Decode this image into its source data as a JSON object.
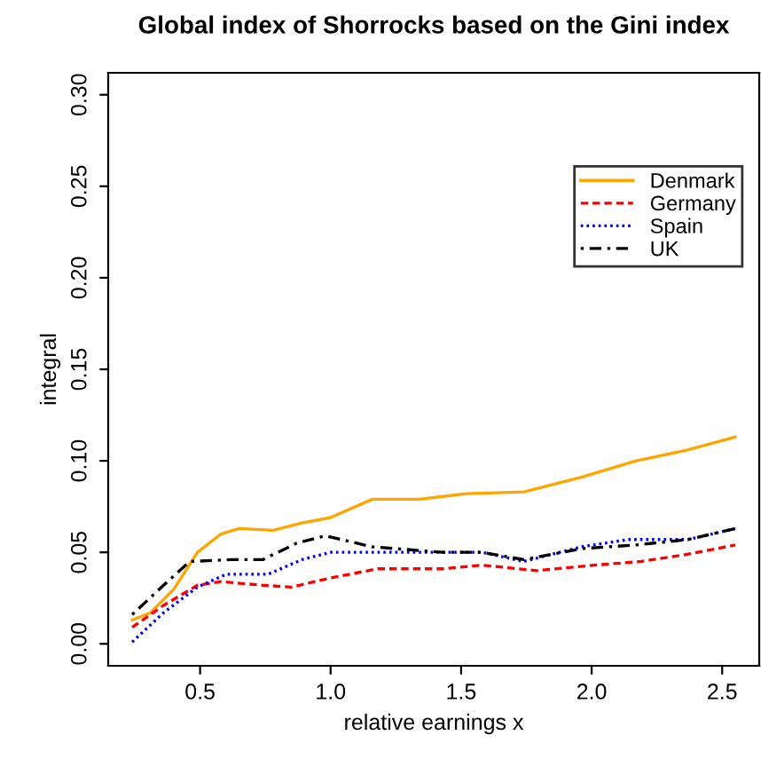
{
  "chart_data": {
    "type": "line",
    "title": "Global index of Shorrocks based on the Gini index",
    "xlabel": "relative earnings x",
    "ylabel": "integral",
    "xlim": [
      0.148,
      2.642
    ],
    "ylim": [
      -0.012,
      0.312
    ],
    "xticks": [
      0.5,
      {
        "value": 1,
        "label": "1.0"
      },
      1.5,
      {
        "value": 2,
        "label": "2.0"
      },
      2.5
    ],
    "yticks": [
      {
        "value": 0,
        "label": "0.00"
      },
      0.05,
      {
        "value": 0.1,
        "label": "0.10"
      },
      0.15,
      {
        "value": 0.2,
        "label": "0.20"
      },
      0.25,
      {
        "value": 0.3,
        "label": "0.30"
      }
    ],
    "legend": "top right",
    "grid": false,
    "series": [
      {
        "name": "Denmark",
        "color": "#ffa500",
        "line_style": "solid",
        "x": [
          0.24,
          0.31,
          0.4,
          0.49,
          0.58,
          0.65,
          0.78,
          0.89,
          1.0,
          1.16,
          1.34,
          1.52,
          1.74,
          1.96,
          2.17,
          2.37,
          2.55
        ],
        "values": [
          0.013,
          0.017,
          0.03,
          0.05,
          0.06,
          0.063,
          0.062,
          0.066,
          0.069,
          0.079,
          0.079,
          0.082,
          0.083,
          0.091,
          0.1,
          0.106,
          0.113
        ]
      },
      {
        "name": "Germany",
        "color": "#ff0000",
        "line_style": "dashed",
        "x": [
          0.24,
          0.36,
          0.49,
          0.58,
          0.74,
          0.85,
          1.0,
          1.18,
          1.43,
          1.58,
          1.79,
          2.01,
          2.19,
          2.37,
          2.55
        ],
        "values": [
          0.009,
          0.021,
          0.032,
          0.034,
          0.032,
          0.031,
          0.036,
          0.041,
          0.041,
          0.043,
          0.04,
          0.043,
          0.045,
          0.049,
          0.054
        ]
      },
      {
        "name": "Spain",
        "color": "#0000ff",
        "line_style": "dotted",
        "x": [
          0.24,
          0.36,
          0.49,
          0.6,
          0.76,
          0.89,
          1.0,
          1.18,
          1.43,
          1.58,
          1.74,
          1.96,
          2.14,
          2.37,
          2.55
        ],
        "values": [
          0.001,
          0.017,
          0.031,
          0.038,
          0.038,
          0.046,
          0.05,
          0.05,
          0.05,
          0.05,
          0.045,
          0.053,
          0.057,
          0.057,
          0.063
        ]
      },
      {
        "name": "UK",
        "color": "#000000",
        "line_style": "dashdot",
        "x": [
          0.24,
          0.36,
          0.46,
          0.62,
          0.74,
          0.87,
          0.98,
          1.16,
          1.43,
          1.58,
          1.74,
          1.96,
          2.17,
          2.37,
          2.55
        ],
        "values": [
          0.016,
          0.032,
          0.045,
          0.046,
          0.046,
          0.055,
          0.059,
          0.053,
          0.05,
          0.05,
          0.046,
          0.052,
          0.054,
          0.057,
          0.063
        ]
      }
    ]
  }
}
